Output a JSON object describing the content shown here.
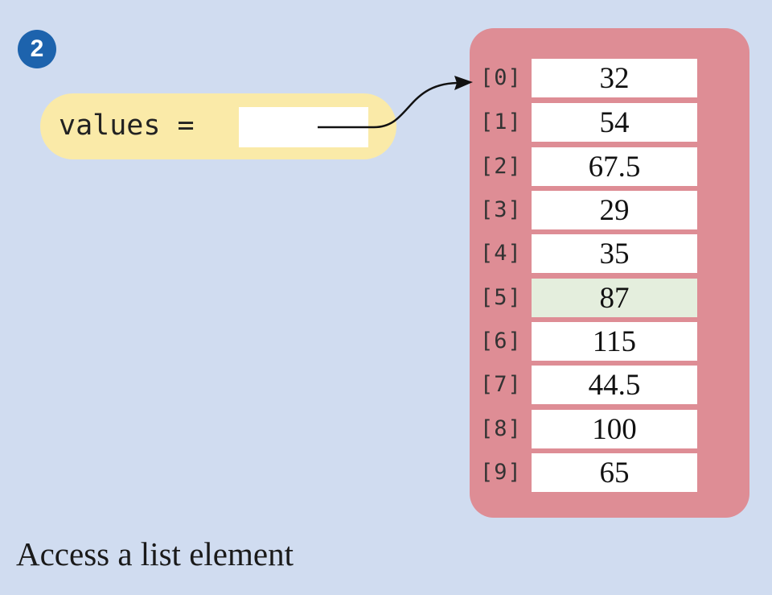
{
  "step_number": "2",
  "variable": {
    "label": "values ="
  },
  "list": {
    "elements": [
      {
        "index": "[0]",
        "value": "32"
      },
      {
        "index": "[1]",
        "value": "54"
      },
      {
        "index": "[2]",
        "value": "67.5"
      },
      {
        "index": "[3]",
        "value": "29"
      },
      {
        "index": "[4]",
        "value": "35"
      },
      {
        "index": "[5]",
        "value": "87",
        "highlighted": true
      },
      {
        "index": "[6]",
        "value": "115"
      },
      {
        "index": "[7]",
        "value": "44.5"
      },
      {
        "index": "[8]",
        "value": "100"
      },
      {
        "index": "[9]",
        "value": "65"
      }
    ]
  },
  "caption": "Access a list element",
  "colors": {
    "background": "#d0dcf0",
    "badge": "#1d63ad",
    "variable_pill": "#faeaa8",
    "list_panel": "#de8d95",
    "highlight_cell": "#e4eedd"
  }
}
